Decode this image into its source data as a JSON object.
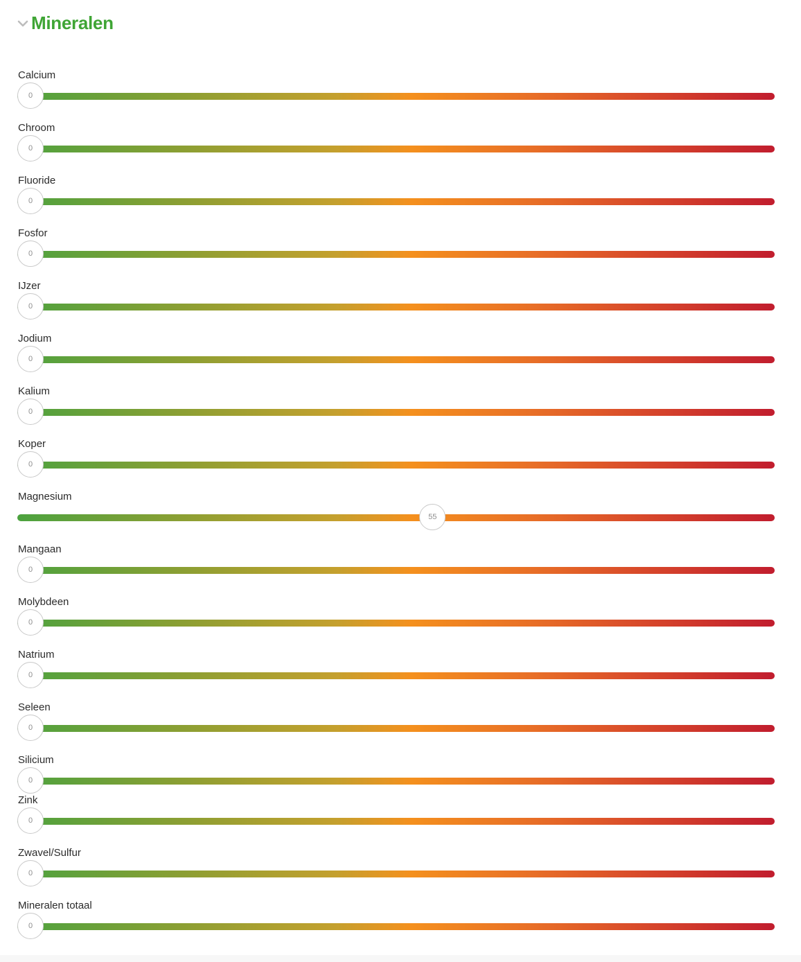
{
  "section": {
    "title": "Mineralen",
    "icon": "chevron-down-icon",
    "title_color": "#3fa535"
  },
  "scale": {
    "min": 0,
    "max": 100,
    "gradient": [
      "#4ca23f",
      "#f4901e",
      "#c11d2e"
    ]
  },
  "sliders": [
    {
      "label": "Calcium",
      "value": 0
    },
    {
      "label": "Chroom",
      "value": 0
    },
    {
      "label": "Fluoride",
      "value": 0
    },
    {
      "label": "Fosfor",
      "value": 0
    },
    {
      "label": "IJzer",
      "value": 0
    },
    {
      "label": "Jodium",
      "value": 0
    },
    {
      "label": "Kalium",
      "value": 0
    },
    {
      "label": "Koper",
      "value": 0
    },
    {
      "label": "Magnesium",
      "value": 55
    },
    {
      "label": "Mangaan",
      "value": 0
    },
    {
      "label": "Molybdeen",
      "value": 0
    },
    {
      "label": "Natrium",
      "value": 0
    },
    {
      "label": "Seleen",
      "value": 0
    },
    {
      "label": "Silicium",
      "value": 0
    },
    {
      "label": "Zink",
      "value": 0
    },
    {
      "label": "Zwavel/Sulfur",
      "value": 0
    },
    {
      "label": "Mineralen totaal",
      "value": 0
    }
  ]
}
